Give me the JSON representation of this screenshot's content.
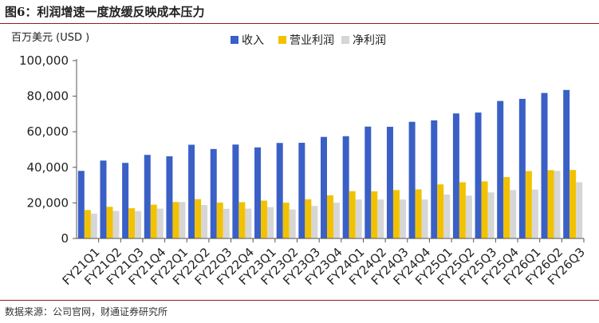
{
  "figure": {
    "title": "图6：利润增速一度放缓反映成本压力",
    "source": "数据来源：公司官网，财通证券研究所"
  },
  "colors": {
    "revenue": "#3a60c6",
    "op_profit": "#f2c200",
    "net_profit": "#d6d6d6",
    "axis": "#555555",
    "rule": "#8a1c2a"
  },
  "chart_data": {
    "type": "bar",
    "title": "",
    "ylabel": "百万美元 (USD )",
    "xlabel": "",
    "ylim": [
      0,
      100000
    ],
    "yticks": [
      0,
      20000,
      40000,
      60000,
      80000,
      100000
    ],
    "ytick_labels": [
      "0",
      "20,000",
      "40,000",
      "60,000",
      "80,000",
      "100,000"
    ],
    "grid": false,
    "legend_position": "top",
    "categories": [
      "FY21Q1",
      "FY21Q2",
      "FY21Q3",
      "FY21Q4",
      "FY22Q1",
      "FY22Q2",
      "FY22Q3",
      "FY22Q4",
      "FY23Q1",
      "FY23Q2",
      "FY23Q3",
      "FY23Q4",
      "FY24Q1",
      "FY24Q2",
      "FY24Q3",
      "FY24Q4",
      "FY25Q1",
      "FY25Q2",
      "FY25Q3",
      "FY25Q4",
      "FY26Q1",
      "FY26Q2",
      "FY26Q3"
    ],
    "series": [
      {
        "name": "收入",
        "values": [
          38000,
          43800,
          42500,
          47000,
          46200,
          52700,
          50300,
          52800,
          51200,
          53700,
          53800,
          57100,
          57500,
          62900,
          62800,
          65600,
          66400,
          70300,
          70800,
          77300,
          78500,
          81800,
          83500
        ]
      },
      {
        "name": "营业利润",
        "values": [
          16000,
          17800,
          17000,
          19000,
          20500,
          22100,
          20200,
          20400,
          21300,
          20100,
          22000,
          24300,
          26600,
          26500,
          27200,
          27600,
          30400,
          31600,
          32100,
          34500,
          37900,
          38400,
          38500
        ]
      },
      {
        "name": "净利润",
        "values": [
          14000,
          15500,
          15400,
          16800,
          20500,
          18800,
          16700,
          16800,
          17600,
          16300,
          18300,
          20100,
          21900,
          21900,
          21900,
          21900,
          24700,
          24100,
          25900,
          27200,
          27500,
          38000,
          31600
        ]
      }
    ]
  }
}
